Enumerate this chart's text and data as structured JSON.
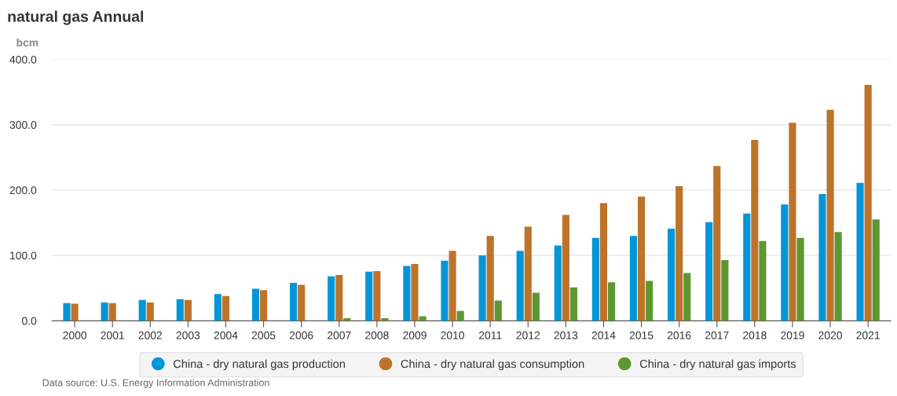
{
  "chart_data": {
    "type": "bar",
    "title": "natural gas Annual",
    "ylabel": "bcm",
    "categories": [
      "2000",
      "2001",
      "2002",
      "2003",
      "2004",
      "2005",
      "2006",
      "2007",
      "2008",
      "2009",
      "2010",
      "2011",
      "2012",
      "2013",
      "2014",
      "2015",
      "2016",
      "2017",
      "2018",
      "2019",
      "2020",
      "2021"
    ],
    "series": [
      {
        "name": "China - dry natural gas production",
        "color": "#0096d7",
        "values": [
          27,
          28,
          32,
          33,
          41,
          49,
          58,
          68,
          75,
          84,
          92,
          100,
          107,
          115,
          127,
          130,
          141,
          151,
          164,
          178,
          194,
          211
        ]
      },
      {
        "name": "China - dry natural gas consumption",
        "color": "#bd732a",
        "values": [
          26,
          27,
          28,
          32,
          38,
          47,
          55,
          70,
          76,
          87,
          107,
          130,
          144,
          162,
          180,
          190,
          206,
          237,
          277,
          303,
          323,
          361
        ]
      },
      {
        "name": "China - dry natural gas imports",
        "color": "#5d9732",
        "values": [
          null,
          null,
          null,
          null,
          null,
          null,
          null,
          4,
          4,
          7,
          15,
          31,
          43,
          51,
          59,
          61,
          73,
          93,
          122,
          127,
          136,
          155
        ]
      }
    ],
    "ylim": [
      0,
      400
    ],
    "yticks": [
      {
        "value": 0,
        "label": "0.0"
      },
      {
        "value": 100,
        "label": "100.0"
      },
      {
        "value": 200,
        "label": "200.0"
      },
      {
        "value": 300,
        "label": "300.0"
      },
      {
        "value": 400,
        "label": "400.0"
      }
    ],
    "grid": "y",
    "legend": "bottom",
    "annotations": [
      "Data source: U.S. Energy Information Administration"
    ]
  }
}
